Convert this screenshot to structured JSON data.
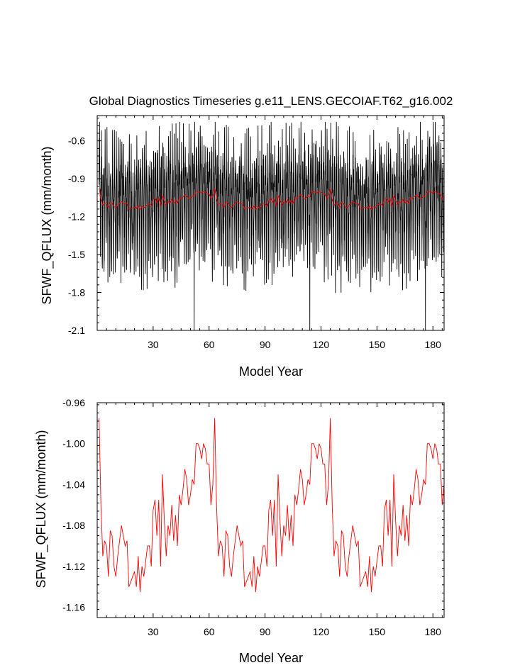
{
  "title": "Global Diagnostics Timeseries g.e11_LENS.GECOIAF.T62_g16.002",
  "chart_data": [
    {
      "type": "line",
      "xlabel": "Model Year",
      "ylabel": "SFWF_QFLUX (mm/month)",
      "xlim": [
        0,
        186
      ],
      "ylim": [
        -2.1,
        -0.4
      ],
      "xticks": [
        30,
        60,
        90,
        120,
        150,
        180
      ],
      "xtick_labels": [
        "30",
        "60",
        "90",
        "120",
        "150",
        "180"
      ],
      "yticks": [
        -2.1,
        -1.8,
        -1.5,
        -1.2,
        -0.9,
        -0.6
      ],
      "ytick_labels": [
        "-2.1",
        "-1.8",
        "-1.5",
        "-1.2",
        "-0.9",
        "-0.6"
      ],
      "grid": false,
      "series": [
        {
          "description_kind": "monthly",
          "color": "#000000",
          "sampling": "monthly (12 values per model year, 186 years)",
          "annual_range_approx": [
            -1.9,
            -0.5
          ],
          "extremes": [
            {
              "year": 52,
              "value": -2.1
            },
            {
              "year": 114,
              "value": -2.1
            },
            {
              "year": 176,
              "value": -2.1
            }
          ]
        },
        {
          "description_kind": "annual-mean",
          "color": "#ff0000",
          "values_ref": "annual_mean"
        }
      ]
    },
    {
      "type": "line",
      "xlabel": "Model Year",
      "ylabel": "SFWF_QFLUX (mm/month)",
      "xlim": [
        0,
        186
      ],
      "ylim": [
        -1.17,
        -0.96
      ],
      "xticks": [
        30,
        60,
        90,
        120,
        150,
        180
      ],
      "xtick_labels": [
        "30",
        "60",
        "90",
        "120",
        "150",
        "180"
      ],
      "yticks": [
        -1.16,
        -1.12,
        -1.08,
        -1.04,
        -1.0,
        -0.96
      ],
      "ytick_labels": [
        "-1.16",
        "-1.12",
        "-1.08",
        "-1.04",
        "-1.00",
        "-0.96"
      ],
      "grid": false,
      "series": [
        {
          "color": "#ff0000",
          "values_ref": "annual_mean"
        }
      ]
    }
  ],
  "annual_mean": {
    "x_start": 1,
    "x_step": 1,
    "cycle_length": 62,
    "cycle": [
      -0.975,
      -1.06,
      -1.11,
      -1.095,
      -1.1,
      -1.13,
      -1.085,
      -1.09,
      -1.12,
      -1.13,
      -1.11,
      -1.095,
      -1.08,
      -1.09,
      -1.1,
      -1.095,
      -1.14,
      -1.135,
      -1.13,
      -1.125,
      -1.14,
      -1.11,
      -1.145,
      -1.12,
      -1.13,
      -1.115,
      -1.1,
      -1.1,
      -1.12,
      -1.065,
      -1.055,
      -1.09,
      -1.055,
      -1.12,
      -1.03,
      -1.075,
      -1.11,
      -1.08,
      -1.09,
      -1.06,
      -1.095,
      -1.07,
      -1.1,
      -1.05,
      -1.06,
      -1.045,
      -1.025,
      -1.035,
      -1.06,
      -1.05,
      -1.035,
      -1.04,
      -1.0,
      -1.0,
      -1.005,
      -1.015,
      -1.0,
      -1.005,
      -1.02,
      -1.02,
      -1.06,
      -1.04
    ],
    "cycles": 3
  }
}
